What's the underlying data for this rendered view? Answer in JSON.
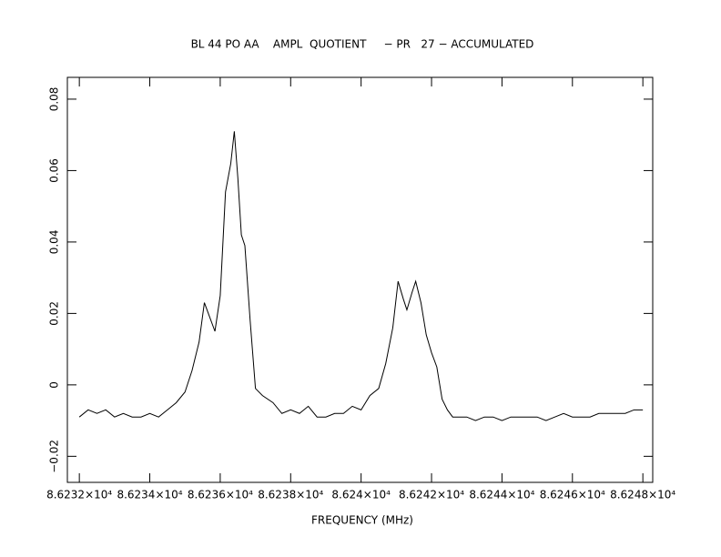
{
  "chart_data": {
    "type": "line",
    "title": "BL 44 PO AA    AMPL  QUOTIENT     − PR   27 − ACCUMULATED",
    "x_label": "FREQUENCY (MHz)",
    "xlim": [
      86231.66,
      86248.28
    ],
    "ylim": [
      -0.0273,
      0.0861
    ],
    "xticks": [
      {
        "value": 86232,
        "label": "8.6232×10⁴"
      },
      {
        "value": 86234,
        "label": "8.6234×10⁴"
      },
      {
        "value": 86236,
        "label": "8.6236×10⁴"
      },
      {
        "value": 86238,
        "label": "8.6238×10⁴"
      },
      {
        "value": 86240,
        "label": "8.624×10⁴"
      },
      {
        "value": 86242,
        "label": "8.6242×10⁴"
      },
      {
        "value": 86244,
        "label": "8.6244×10⁴"
      },
      {
        "value": 86246,
        "label": "8.6246×10⁴"
      },
      {
        "value": 86248,
        "label": "8.6248×10⁴"
      }
    ],
    "yticks": [
      {
        "value": -0.02,
        "label": "−0.02"
      },
      0,
      0.02,
      0.04,
      0.06,
      0.08
    ],
    "series": [
      {
        "color": "#000000",
        "x": [
          86232.0,
          86232.25,
          86232.5,
          86232.75,
          86233.0,
          86233.25,
          86233.5,
          86233.75,
          86234.0,
          86234.25,
          86234.5,
          86234.75,
          86235.0,
          86235.2,
          86235.4,
          86235.55,
          86235.7,
          86235.85,
          86236.0,
          86236.15,
          86236.3,
          86236.4,
          86236.5,
          86236.6,
          86236.7,
          86236.85,
          86237.0,
          86237.2,
          86237.5,
          86237.75,
          86238.0,
          86238.25,
          86238.5,
          86238.75,
          86239.0,
          86239.25,
          86239.5,
          86239.75,
          86240.0,
          86240.25,
          86240.5,
          86240.7,
          86240.9,
          86241.05,
          86241.2,
          86241.3,
          86241.45,
          86241.55,
          86241.7,
          86241.85,
          86242.0,
          86242.15,
          86242.3,
          86242.45,
          86242.6,
          86242.75,
          86243.0,
          86243.25,
          86243.5,
          86243.75,
          86244.0,
          86244.25,
          86244.5,
          86244.75,
          86245.0,
          86245.25,
          86245.5,
          86245.75,
          86246.0,
          86246.25,
          86246.5,
          86246.75,
          86247.0,
          86247.25,
          86247.5,
          86247.75,
          86248.0
        ],
        "values": [
          -0.009,
          -0.007,
          -0.008,
          -0.007,
          -0.009,
          -0.008,
          -0.009,
          -0.009,
          -0.008,
          -0.009,
          -0.007,
          -0.005,
          -0.002,
          0.004,
          0.012,
          0.023,
          0.019,
          0.015,
          0.025,
          0.054,
          0.062,
          0.071,
          0.058,
          0.042,
          0.039,
          0.018,
          -0.001,
          -0.003,
          -0.005,
          -0.008,
          -0.007,
          -0.008,
          -0.006,
          -0.009,
          -0.009,
          -0.008,
          -0.008,
          -0.006,
          -0.007,
          -0.003,
          -0.001,
          0.006,
          0.016,
          0.029,
          0.024,
          0.021,
          0.026,
          0.029,
          0.023,
          0.014,
          0.009,
          0.005,
          -0.004,
          -0.007,
          -0.009,
          -0.009,
          -0.009,
          -0.01,
          -0.009,
          -0.009,
          -0.01,
          -0.009,
          -0.009,
          -0.009,
          -0.009,
          -0.01,
          -0.009,
          -0.008,
          -0.009,
          -0.009,
          -0.009,
          -0.008,
          -0.008,
          -0.008,
          -0.008,
          -0.007,
          -0.007
        ]
      }
    ]
  }
}
